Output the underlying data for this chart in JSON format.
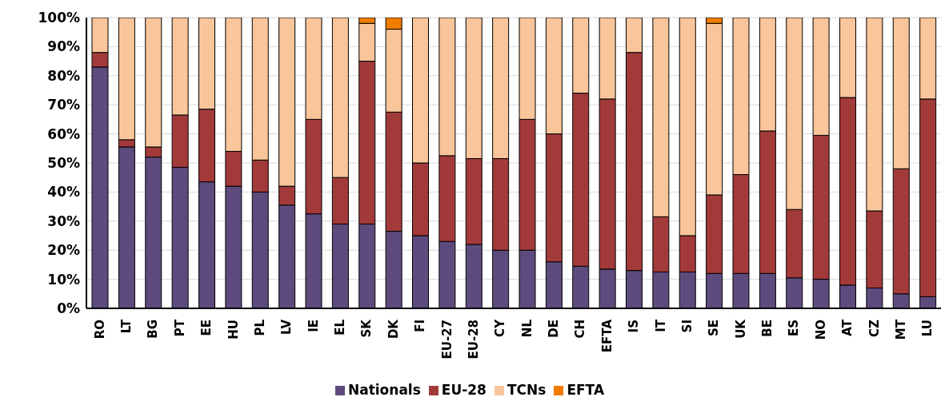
{
  "chart_data": {
    "type": "bar",
    "stacked": true,
    "categories": [
      "RO",
      "LT",
      "BG",
      "PT",
      "EE",
      "HU",
      "PL",
      "LV",
      "IE",
      "EL",
      "SK",
      "DK",
      "FI",
      "EU-27",
      "EU-28",
      "CY",
      "NL",
      "DE",
      "CH",
      "EFTA",
      "IS",
      "IT",
      "SI",
      "SE",
      "UK",
      "BE",
      "ES",
      "NO",
      "AT",
      "CZ",
      "MT",
      "LU"
    ],
    "series": [
      {
        "name": "Nationals",
        "color": "#5e4b7d",
        "values": [
          83,
          55.5,
          52,
          48.5,
          43.5,
          42,
          40,
          35.5,
          32.5,
          29,
          29,
          26.5,
          25,
          23,
          22,
          20,
          20,
          16,
          14.5,
          13.5,
          13,
          12.5,
          12.5,
          12,
          12,
          12,
          10.5,
          10,
          8,
          7,
          5,
          4
        ]
      },
      {
        "name": "EU-28",
        "color": "#a33a3a",
        "values": [
          5,
          2.5,
          3.5,
          18,
          25,
          12,
          11,
          6.5,
          32.5,
          16,
          56,
          41,
          25,
          29.5,
          29.5,
          31.5,
          45,
          44,
          59.5,
          58.5,
          75,
          19,
          12.5,
          27,
          34,
          49,
          23.5,
          49.5,
          64.5,
          26.5,
          43,
          68
        ]
      },
      {
        "name": "TCNs",
        "color": "#f9c59a",
        "values": [
          12,
          42,
          44.5,
          33.5,
          31.5,
          46,
          49,
          58,
          35,
          55,
          13,
          28.5,
          50,
          47.5,
          48.5,
          48.5,
          35,
          40,
          26,
          28,
          12,
          68.5,
          75,
          59,
          54,
          39,
          66,
          40.5,
          27.5,
          66.5,
          52,
          28
        ]
      },
      {
        "name": "EFTA",
        "color": "#f07c00",
        "values": [
          0,
          0,
          0,
          0,
          0,
          0,
          0,
          0,
          0,
          0,
          2,
          4,
          0,
          0,
          0,
          0,
          0,
          0,
          0,
          0,
          0,
          0,
          0,
          2,
          0,
          0,
          0,
          0,
          0,
          0,
          0,
          0
        ]
      }
    ],
    "ylim": [
      0,
      100
    ],
    "yticks": [
      {
        "value": 0,
        "label": "0%"
      },
      {
        "value": 10,
        "label": "10%"
      },
      {
        "value": 20,
        "label": "20%"
      },
      {
        "value": 30,
        "label": "30%"
      },
      {
        "value": 40,
        "label": "40%"
      },
      {
        "value": 50,
        "label": "50%"
      },
      {
        "value": 60,
        "label": "60%"
      },
      {
        "value": 70,
        "label": "70%"
      },
      {
        "value": 80,
        "label": "80%"
      },
      {
        "value": 90,
        "label": "90%"
      },
      {
        "value": 100,
        "label": "100%"
      }
    ],
    "grid": "y",
    "legend": "bottom"
  }
}
